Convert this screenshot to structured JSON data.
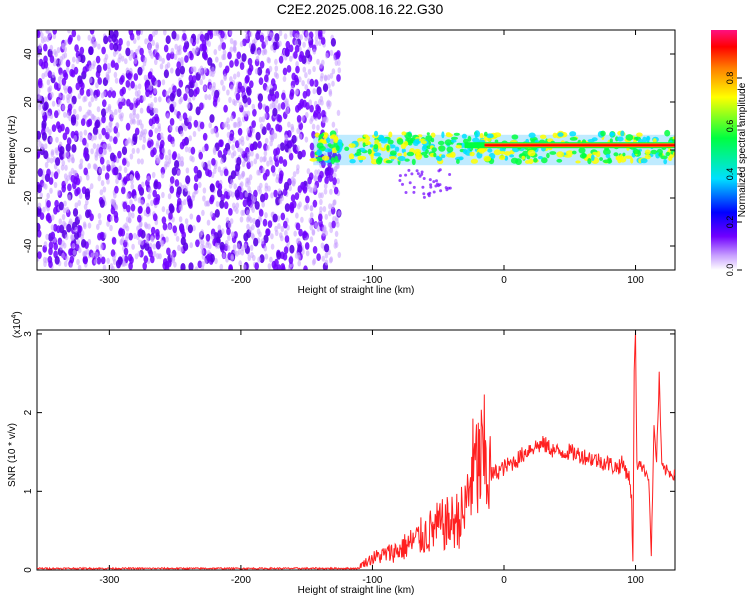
{
  "title": "C2E2.2025.008.16.22.G30",
  "chart_data": [
    {
      "type": "heatmap",
      "xlabel": "Height of straight line (km)",
      "ylabel": "Frequency (Hz)",
      "xlim": [
        -355,
        130
      ],
      "ylim": [
        -50,
        50
      ],
      "xticks": [
        -300,
        -200,
        -100,
        0,
        100
      ],
      "yticks": [
        -40,
        -20,
        0,
        20,
        40
      ],
      "grid": false,
      "colorbar": {
        "label": "Normalized spectral amplitude",
        "range": [
          0,
          1
        ],
        "ticks": [
          "0.0",
          "0.2",
          "0.4",
          "0.6",
          "0.8"
        ],
        "colormap": [
          "#ffffff",
          "#c8a0ff",
          "#7000ff",
          "#0000ff",
          "#00e0ff",
          "#00ff40",
          "#ffff00",
          "#ff8000",
          "#ff0000",
          "#ff1080"
        ]
      },
      "regions": [
        {
          "name": "noise",
          "x": [
            -355,
            -125
          ],
          "y": [
            -50,
            50
          ],
          "amplitude": [
            0.0,
            0.2
          ]
        },
        {
          "name": "signal-band",
          "x": [
            -145,
            130
          ],
          "y": [
            -8,
            8
          ],
          "amplitude": [
            0.2,
            1.0
          ]
        },
        {
          "name": "strong-line",
          "x": [
            -30,
            130
          ],
          "center_y": 2,
          "amplitude": 1.0
        }
      ]
    },
    {
      "type": "line",
      "xlabel": "Height of straight line (km)",
      "ylabel": "SNR (10 * v/v)",
      "y_multiplier": "(x10",
      "y_multiplier_exp": "4",
      "xlim": [
        -355,
        130
      ],
      "ylim": [
        0,
        3.05
      ],
      "xticks": [
        -300,
        -200,
        -100,
        0,
        100
      ],
      "yticks": [
        0,
        1,
        2,
        3
      ],
      "grid": false,
      "series": [
        {
          "color": "#ff2020",
          "x": [
            -355,
            -300,
            -250,
            -200,
            -150,
            -110,
            -100,
            -90,
            -80,
            -70,
            -60,
            -50,
            -40,
            -30,
            -25,
            -20,
            -15,
            -10,
            -5,
            0,
            10,
            20,
            30,
            40,
            50,
            60,
            70,
            80,
            85,
            90,
            95,
            97,
            98,
            99,
            100,
            101,
            103,
            105,
            110,
            112,
            114,
            116,
            118,
            120,
            125,
            130
          ],
          "y": [
            0.02,
            0.02,
            0.02,
            0.02,
            0.02,
            0.05,
            0.15,
            0.2,
            0.25,
            0.35,
            0.45,
            0.55,
            0.6,
            0.7,
            1.2,
            1.3,
            1.4,
            1.2,
            1.25,
            1.3,
            1.4,
            1.55,
            1.6,
            1.5,
            1.5,
            1.45,
            1.4,
            1.35,
            1.3,
            1.35,
            1.2,
            0.9,
            0.1,
            2.5,
            3.05,
            1.3,
            1.4,
            1.3,
            1.2,
            0.2,
            1.8,
            1.4,
            2.45,
            1.3,
            1.25,
            1.2
          ]
        }
      ]
    }
  ]
}
